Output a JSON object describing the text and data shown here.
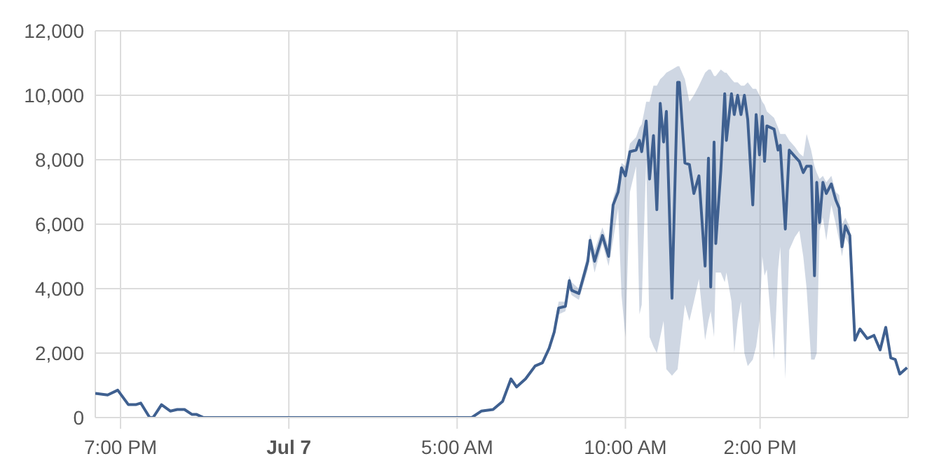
{
  "chart_data": {
    "type": "line",
    "x": [
      "--07-06T18:15",
      "--07-06T18:37",
      "--07-06T18:55",
      "--07-06T19:14",
      "--07-06T19:27",
      "--07-06T19:36",
      "--07-06T19:52",
      "--07-06T19:58",
      "--07-06T20:13",
      "--07-06T20:29",
      "--07-06T20:41",
      "--07-06T20:54",
      "--07-06T21:07",
      "--07-06T21:15",
      "--07-06T21:28",
      "--07-07T05:26",
      "--07-07T05:43",
      "--07-07T06:04",
      "--07-07T06:21",
      "--07-07T06:36",
      "--07-07T06:46",
      "--07-07T07:02",
      "--07-07T07:19",
      "--07-07T07:32",
      "--07-07T07:44",
      "--07-07T07:53",
      "--07-07T08:01",
      "--07-07T08:13",
      "--07-07T08:20",
      "--07-07T08:24",
      "--07-07T08:37",
      "--07-07T08:53",
      "--07-07T08:57",
      "--07-07T09:05",
      "--07-07T09:19",
      "--07-07T09:30",
      "--07-07T09:38",
      "--07-07T09:47",
      "--07-07T09:53",
      "--07-07T10:00",
      "--07-07T10:08",
      "--07-07T10:19",
      "--07-07T10:25",
      "--07-07T10:29",
      "--07-07T10:37",
      "--07-07T10:43",
      "--07-07T10:50",
      "--07-07T10:56",
      "--07-07T11:02",
      "--07-07T11:08",
      "--07-07T11:13",
      "--07-07T11:23",
      "--07-07T11:33",
      "--07-07T11:36",
      "--07-07T11:46",
      "--07-07T11:54",
      "--07-07T12:02",
      "--07-07T12:11",
      "--07-07T12:22",
      "--07-07T12:28",
      "--07-07T12:32",
      "--07-07T12:38",
      "--07-07T12:41",
      "--07-07T12:50",
      "--07-07T12:57",
      "--07-07T13:00",
      "--07-07T13:09",
      "--07-07T13:14",
      "--07-07T13:20",
      "--07-07T13:26",
      "--07-07T13:32",
      "--07-07T13:38",
      "--07-07T13:47",
      "--07-07T13:53",
      "--07-07T13:59",
      "--07-07T14:04",
      "--07-07T14:08",
      "--07-07T14:12",
      "--07-07T14:25",
      "--07-07T14:32",
      "--07-07T14:36",
      "--07-07T14:45",
      "--07-07T14:52",
      "--07-07T15:02",
      "--07-07T15:10",
      "--07-07T15:17",
      "--07-07T15:23",
      "--07-07T15:31",
      "--07-07T15:37",
      "--07-07T15:41",
      "--07-07T15:46",
      "--07-07T15:52",
      "--07-07T15:58",
      "--07-07T16:07",
      "--07-07T16:15",
      "--07-07T16:21",
      "--07-07T16:26",
      "--07-07T16:32",
      "--07-07T16:40",
      "--07-07T16:49",
      "--07-07T16:58",
      "--07-07T17:11",
      "--07-07T17:23",
      "--07-07T17:34",
      "--07-07T17:44",
      "--07-07T17:53",
      "--07-07T18:01",
      "--07-07T18:09",
      "--07-07T18:22"
    ],
    "series": [
      {
        "color": "#3f6090",
        "values": [
          750,
          700,
          850,
          400,
          400,
          450,
          0,
          0,
          400,
          200,
          250,
          250,
          100,
          100,
          0,
          0,
          200,
          250,
          500,
          1200,
          950,
          1200,
          1600,
          1700,
          2150,
          2650,
          3400,
          3450,
          4250,
          3950,
          3850,
          4850,
          5500,
          4850,
          5650,
          5000,
          6600,
          7000,
          7750,
          7500,
          8250,
          8300,
          8600,
          8250,
          9200,
          7400,
          8750,
          6450,
          9750,
          8550,
          9500,
          3700,
          10400,
          10400,
          7900,
          7850,
          6950,
          7500,
          4700,
          8050,
          4050,
          8550,
          5400,
          7650,
          10050,
          8600,
          10050,
          9400,
          10000,
          9400,
          10000,
          9250,
          6600,
          9400,
          8150,
          9350,
          7950,
          9050,
          8950,
          8300,
          8450,
          5850,
          8300,
          8100,
          7950,
          7600,
          7800,
          7800,
          4400,
          7300,
          6050,
          7300,
          6950,
          7250,
          6750,
          6500,
          5300,
          5950,
          5650,
          2400,
          2750,
          2450,
          2550,
          2100,
          2800,
          1850,
          1800,
          1350,
          1550
        ],
        "lower": [
          null,
          null,
          null,
          null,
          null,
          null,
          null,
          null,
          null,
          null,
          null,
          null,
          null,
          null,
          null,
          null,
          null,
          null,
          null,
          null,
          null,
          null,
          null,
          null,
          null,
          2500,
          3200,
          3300,
          4000,
          3800,
          3650,
          4600,
          5200,
          4500,
          5400,
          4700,
          5500,
          6500,
          3800,
          2500,
          7000,
          7800,
          3200,
          3500,
          8000,
          2500,
          2200,
          2000,
          2500,
          3000,
          1500,
          1300,
          1500,
          2000,
          3500,
          3000,
          3600,
          4300,
          2400,
          3000,
          3300,
          2500,
          4500,
          4500,
          4200,
          4500,
          3600,
          2000,
          3000,
          3600,
          2000,
          1600,
          1800,
          2200,
          3000,
          5000,
          4400,
          4600,
          1800,
          4600,
          5300,
          1200,
          5200,
          5600,
          5800,
          5000,
          4000,
          1800,
          1800,
          2000,
          5800,
          6200,
          5500,
          6600,
          6000,
          5500,
          5000,
          5600,
          5300,
          null,
          null,
          null,
          null,
          null,
          null,
          null,
          null,
          null,
          null
        ],
        "upper": [
          null,
          null,
          null,
          null,
          null,
          null,
          null,
          null,
          null,
          null,
          null,
          null,
          null,
          null,
          null,
          null,
          null,
          null,
          null,
          null,
          null,
          null,
          null,
          null,
          null,
          2900,
          3600,
          3600,
          4400,
          4200,
          4000,
          5100,
          5700,
          5200,
          5900,
          5300,
          6800,
          7300,
          7900,
          7800,
          8500,
          8700,
          9000,
          9100,
          9800,
          9800,
          10300,
          10300,
          10500,
          10600,
          10700,
          10800,
          10900,
          10900,
          10500,
          9800,
          10000,
          10300,
          10700,
          10800,
          10800,
          10600,
          10600,
          10800,
          10700,
          10700,
          10500,
          10400,
          10400,
          10300,
          10300,
          10400,
          10200,
          10200,
          10000,
          9800,
          9700,
          9500,
          9300,
          9000,
          8800,
          8800,
          8600,
          8400,
          8200,
          8100,
          8800,
          8300,
          7800,
          7600,
          7400,
          7500,
          7300,
          7500,
          7000,
          6900,
          6000,
          6200,
          5900,
          null,
          null,
          null,
          null,
          null,
          null,
          null,
          null,
          null,
          null
        ]
      }
    ],
    "xlim": [
      "--07-06T18:15",
      "--07-07T18:24"
    ],
    "xticks": [
      {
        "value": "--07-06T19:00",
        "label": "7:00 PM"
      },
      {
        "value": "--07-07T00:00",
        "label": "Jul 7"
      },
      {
        "value": "--07-07T05:00",
        "label": "5:00 AM"
      },
      {
        "value": "--07-07T10:00",
        "label": "10:00 AM"
      },
      {
        "value": "--07-07T14:00",
        "label": "2:00 PM"
      }
    ],
    "ylim": [
      0,
      12000
    ],
    "yticks": [
      0,
      {
        "value": 2000,
        "label": "2,000"
      },
      {
        "value": 4000,
        "label": "4,000"
      },
      {
        "value": 6000,
        "label": "6,000"
      },
      {
        "value": 8000,
        "label": "8,000"
      },
      {
        "value": 10000,
        "label": "10,000"
      },
      {
        "value": 12000,
        "label": "12,000"
      }
    ],
    "grid": true,
    "marker": "none",
    "line_style": "solid"
  }
}
